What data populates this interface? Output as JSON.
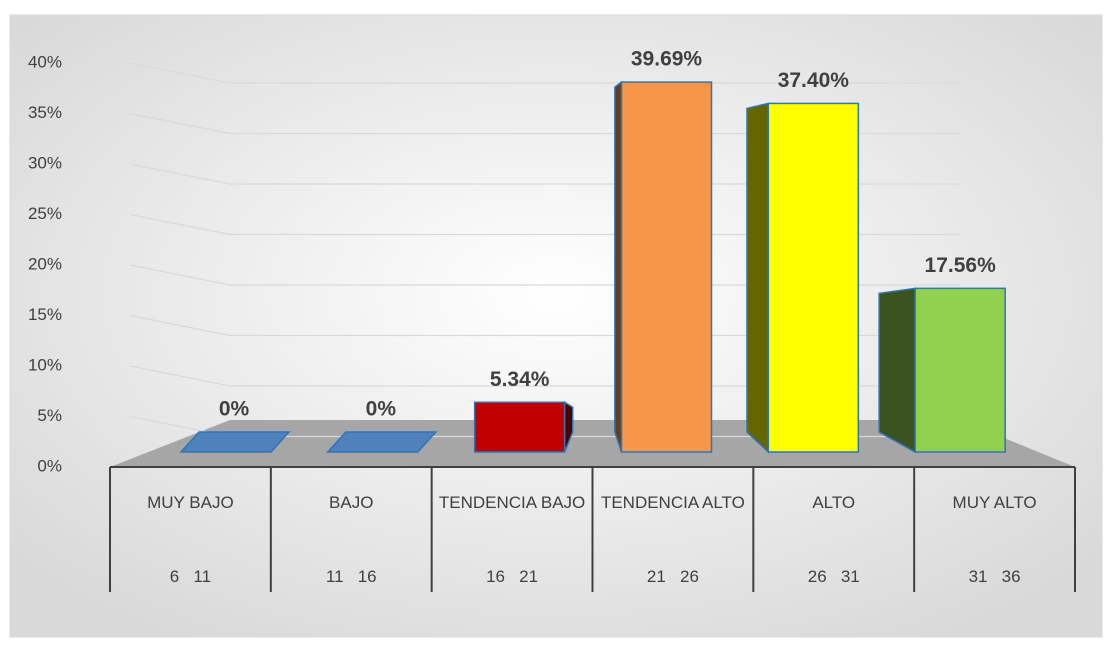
{
  "chart_data": {
    "type": "bar",
    "categories": [
      "MUY BAJO",
      "BAJO",
      "TENDENCIA BAJO",
      "TENDENCIA ALTO",
      "ALTO",
      "MUY ALTO"
    ],
    "category_ranges": [
      "6   11",
      "11   16",
      "16   21",
      "21   26",
      "26   31",
      "31   36"
    ],
    "values": [
      0,
      0,
      5.34,
      39.69,
      37.4,
      17.56
    ],
    "value_labels": [
      "0%",
      "0%",
      "5.34%",
      "39.69%",
      "37.40%",
      "17.56%"
    ],
    "colors": [
      "#4f81bd",
      "#4f81bd",
      "#c00000",
      "#f79646",
      "#ffff00",
      "#92d050"
    ],
    "ylim": [
      0,
      40
    ],
    "yticks": [
      {
        "value": 0,
        "label": "0%"
      },
      {
        "value": 5,
        "label": "5%"
      },
      {
        "value": 10,
        "label": "10%"
      },
      {
        "value": 15,
        "label": "15%"
      },
      {
        "value": 20,
        "label": "20%"
      },
      {
        "value": 25,
        "label": "25%"
      },
      {
        "value": 30,
        "label": "30%"
      },
      {
        "value": 35,
        "label": "35%"
      },
      {
        "value": 40,
        "label": "40%"
      }
    ],
    "grid": true
  }
}
